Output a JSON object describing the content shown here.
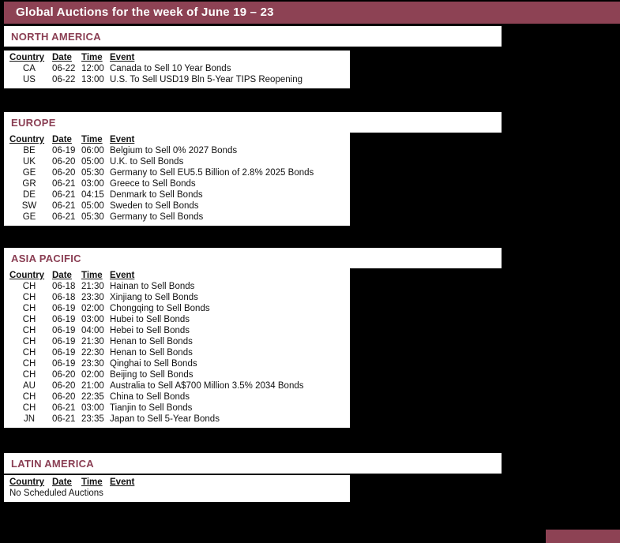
{
  "colors": {
    "accent": "#8d4254",
    "section_title": "#8a3e53",
    "page_bg": "#000000",
    "panel_bg": "#ffffff",
    "body_text": "#121212",
    "title_text": "#ffffff"
  },
  "header": {
    "title": "Global Auctions for the week of June 19 – 23"
  },
  "columns": [
    "Country",
    "Date",
    "Time",
    "Event"
  ],
  "sections": [
    {
      "name": "NORTH AMERICA",
      "rows": [
        [
          "CA",
          "06-22",
          "12:00",
          "Canada to Sell 10 Year Bonds"
        ],
        [
          "US",
          "06-22",
          "13:00",
          "U.S. To Sell USD19 Bln 5-Year TIPS Reopening"
        ]
      ]
    },
    {
      "name": "EUROPE",
      "rows": [
        [
          "BE",
          "06-19",
          "06:00",
          "Belgium to Sell 0% 2027 Bonds"
        ],
        [
          "UK",
          "06-20",
          "05:00",
          "U.K. to Sell Bonds"
        ],
        [
          "GE",
          "06-20",
          "05:30",
          "Germany to Sell EU5.5 Billion of 2.8% 2025 Bonds"
        ],
        [
          "GR",
          "06-21",
          "03:00",
          "Greece to Sell Bonds"
        ],
        [
          "DE",
          "06-21",
          "04:15",
          "Denmark to Sell Bonds"
        ],
        [
          "SW",
          "06-21",
          "05:00",
          "Sweden to Sell Bonds"
        ],
        [
          "GE",
          "06-21",
          "05:30",
          "Germany to Sell Bonds"
        ]
      ]
    },
    {
      "name": "ASIA PACIFIC",
      "rows": [
        [
          "CH",
          "06-18",
          "21:30",
          "Hainan to Sell Bonds"
        ],
        [
          "CH",
          "06-18",
          "23:30",
          "Xinjiang to Sell Bonds"
        ],
        [
          "CH",
          "06-19",
          "02:00",
          "Chongqing to Sell Bonds"
        ],
        [
          "CH",
          "06-19",
          "03:00",
          "Hubei to Sell Bonds"
        ],
        [
          "CH",
          "06-19",
          "04:00",
          "Hebei to Sell Bonds"
        ],
        [
          "CH",
          "06-19",
          "21:30",
          "Henan to Sell Bonds"
        ],
        [
          "CH",
          "06-19",
          "22:30",
          "Henan to Sell Bonds"
        ],
        [
          "CH",
          "06-19",
          "23:30",
          "Qinghai to Sell Bonds"
        ],
        [
          "CH",
          "06-20",
          "02:00",
          "Beijing to Sell Bonds"
        ],
        [
          "AU",
          "06-20",
          "21:00",
          "Australia to Sell A$700 Million 3.5% 2034 Bonds"
        ],
        [
          "CH",
          "06-20",
          "22:35",
          "China to Sell Bonds"
        ],
        [
          "CH",
          "06-21",
          "03:00",
          "Tianjin to Sell Bonds"
        ],
        [
          "JN",
          "06-21",
          "23:35",
          "Japan to Sell 5-Year Bonds"
        ]
      ]
    },
    {
      "name": "LATIN AMERICA",
      "rows": [],
      "empty_message": "No Scheduled Auctions"
    }
  ]
}
